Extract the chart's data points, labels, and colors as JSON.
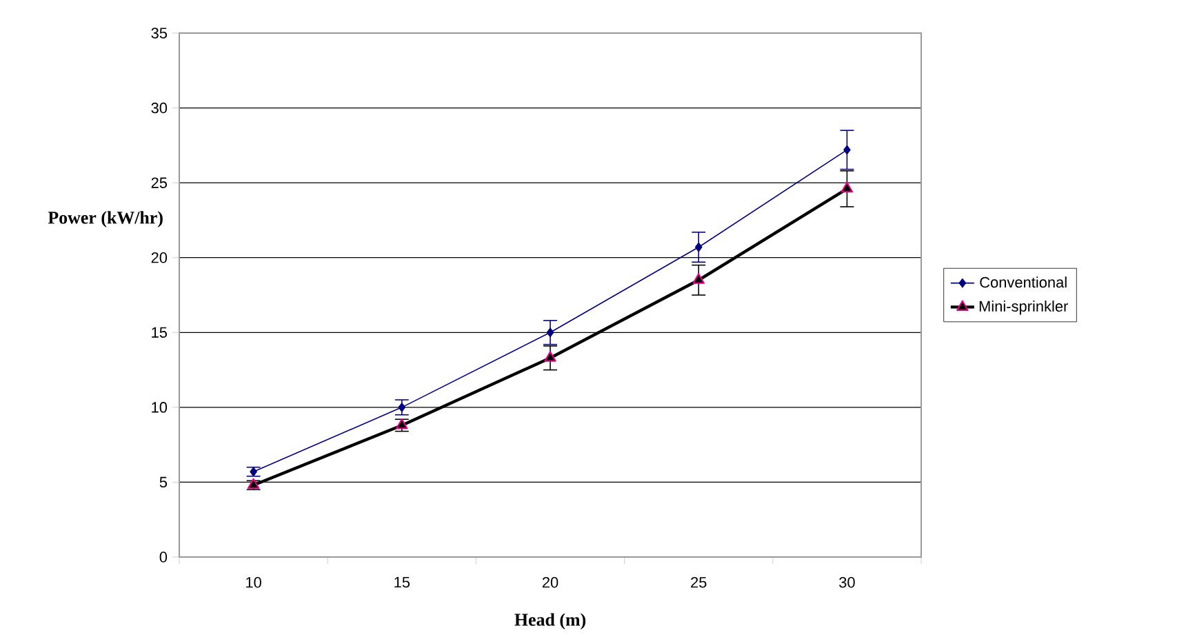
{
  "chart_data": {
    "type": "line",
    "xlabel": "Head (m)",
    "ylabel": "Power (kW/hr)",
    "categories": [
      "10",
      "15",
      "20",
      "25",
      "30"
    ],
    "series": [
      {
        "name": "Conventional",
        "color": "#000080",
        "marker": "diamond",
        "values": [
          5.7,
          10.0,
          15.0,
          20.7,
          27.2
        ],
        "errors": [
          0.3,
          0.5,
          0.8,
          1.0,
          1.3
        ]
      },
      {
        "name": "Mini-sprinkler",
        "color": "#000000",
        "marker": "triangle",
        "values": [
          4.8,
          8.8,
          13.3,
          18.5,
          24.6
        ],
        "errors": [
          0.3,
          0.4,
          0.8,
          1.0,
          1.2
        ]
      }
    ],
    "ylim": [
      0,
      35
    ],
    "yticks": [
      0,
      5,
      10,
      15,
      20,
      25,
      30,
      35
    ],
    "grid": "y",
    "legend": "right"
  }
}
